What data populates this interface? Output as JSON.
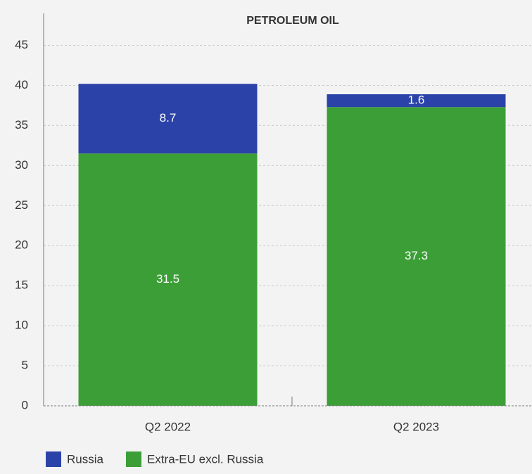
{
  "chart_data": {
    "type": "stacked-bar",
    "title": "PETROLEUM OIL",
    "categories": [
      "Q2 2022",
      "Q2 2023"
    ],
    "series": [
      {
        "name": "Russia",
        "color": "#2b43a8",
        "values": [
          8.7,
          1.6
        ]
      },
      {
        "name": "Extra-EU excl. Russia",
        "color": "#3c9e37",
        "values": [
          31.5,
          37.3
        ]
      }
    ],
    "ylim": [
      0,
      49
    ],
    "yticks": [
      0,
      5,
      10,
      15,
      20,
      25,
      30,
      35,
      40,
      45
    ],
    "grid": true
  }
}
